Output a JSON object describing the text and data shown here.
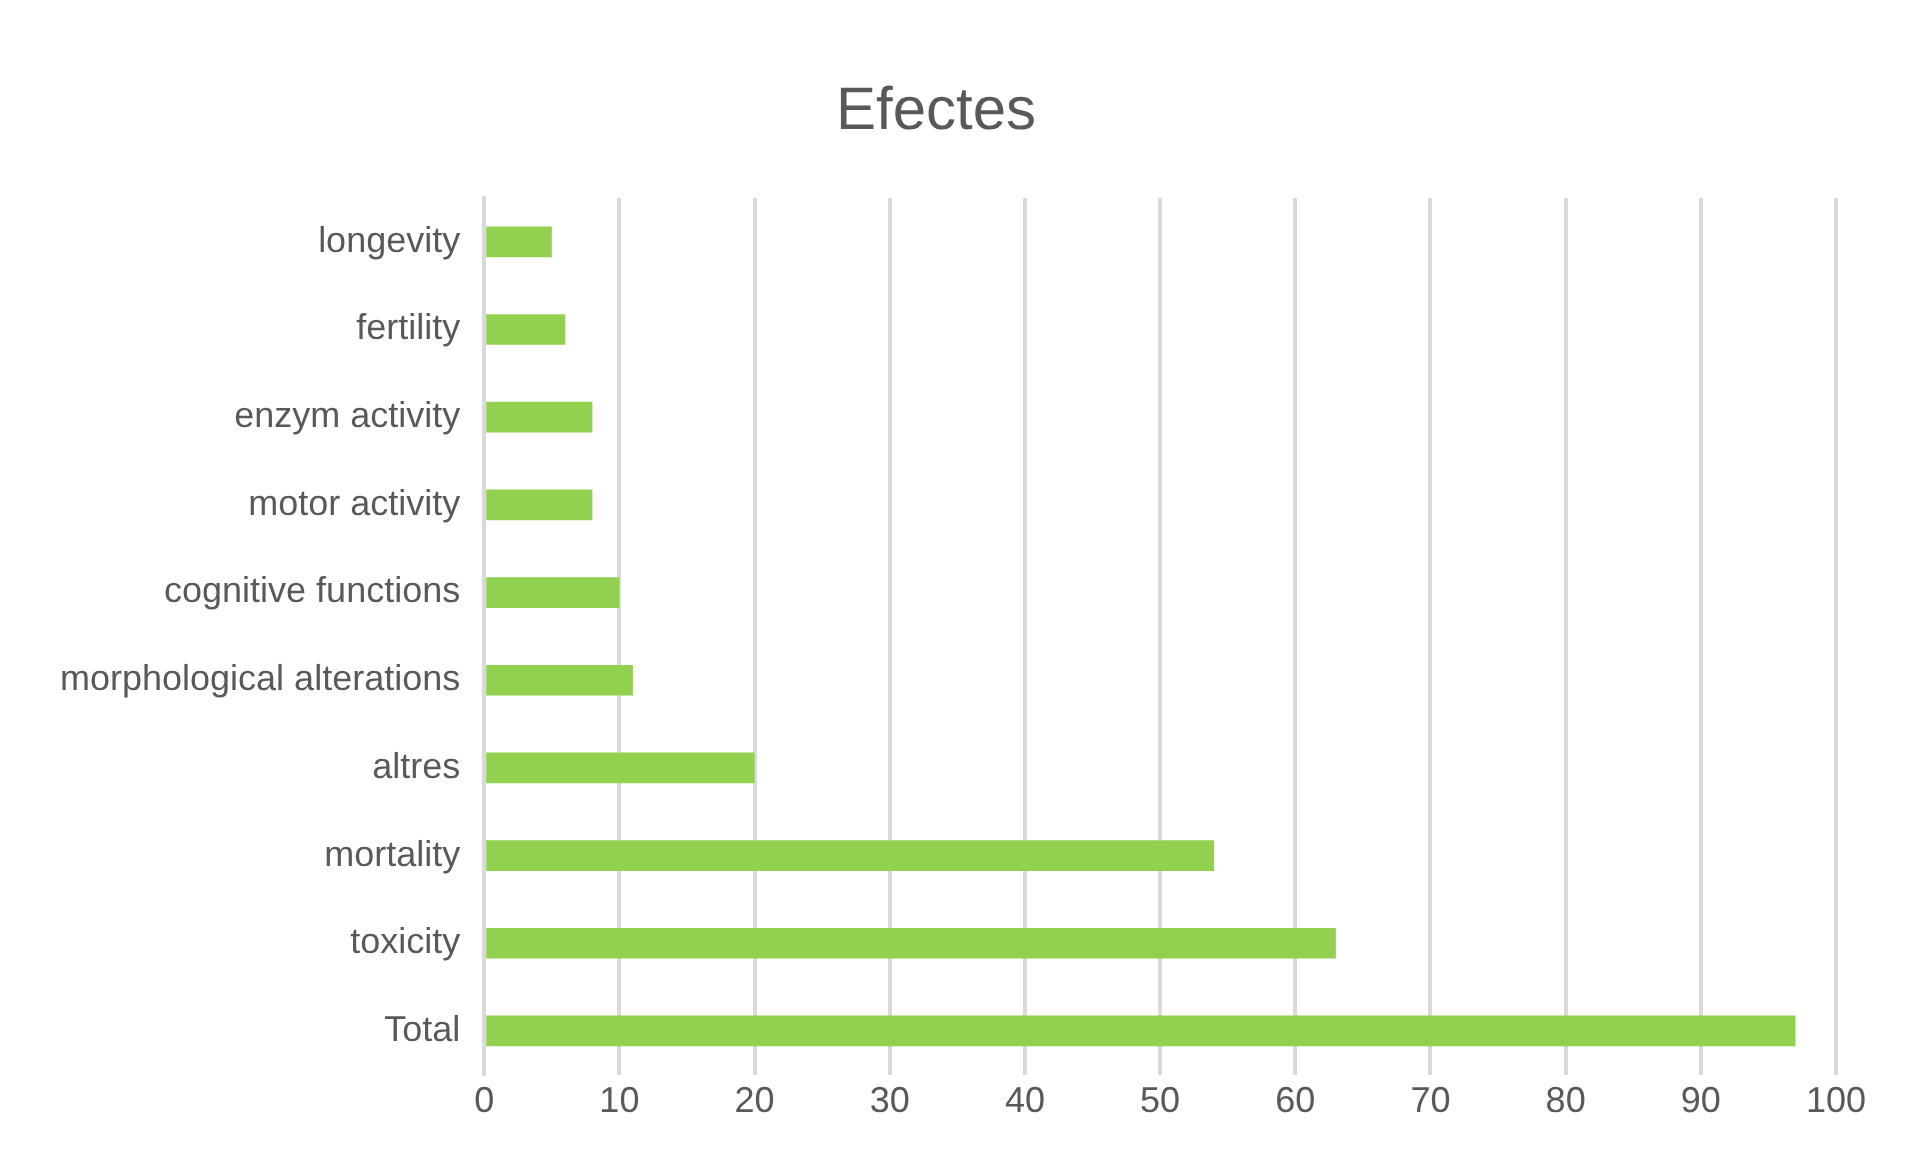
{
  "chart_data": {
    "type": "bar",
    "orientation": "horizontal",
    "title": "Efectes",
    "categories": [
      "longevity",
      "fertility",
      "enzym activity",
      "motor activity",
      "cognitive functions",
      "morphological alterations",
      "altres",
      "mortality",
      "toxicity",
      "Total"
    ],
    "values": [
      5,
      6,
      8,
      8,
      10,
      11,
      20,
      54,
      63,
      97
    ],
    "color": "#92d050",
    "xlim": [
      0,
      100
    ],
    "xticks": [
      0,
      10,
      20,
      30,
      40,
      50,
      60,
      70,
      80,
      90,
      100
    ],
    "grid": "x",
    "legend": false
  }
}
